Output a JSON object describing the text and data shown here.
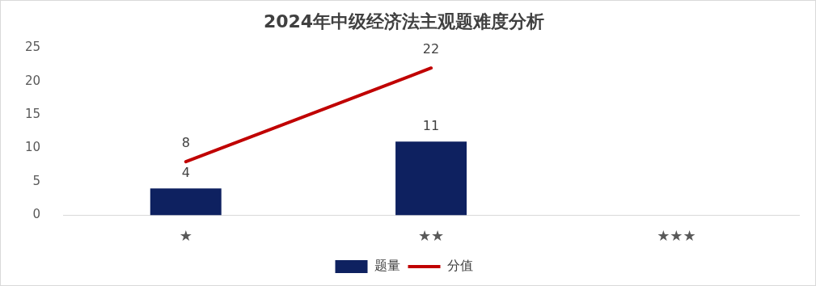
{
  "chart_data": {
    "type": "bar",
    "title": "2024年中级经济法主观题难度分析",
    "categories": [
      "★",
      "★★",
      "★★★"
    ],
    "series": [
      {
        "name": "题量",
        "color": "#0e2160",
        "values": [
          4,
          11,
          null
        ]
      },
      {
        "name": "分值",
        "type": "line",
        "color": "#c00000",
        "values": [
          8,
          22,
          null
        ]
      }
    ],
    "ylim": [
      0,
      25
    ],
    "yticks": [
      0,
      5,
      10,
      15,
      20,
      25
    ],
    "grid": false,
    "legend": "bottom",
    "data_labels": true
  }
}
